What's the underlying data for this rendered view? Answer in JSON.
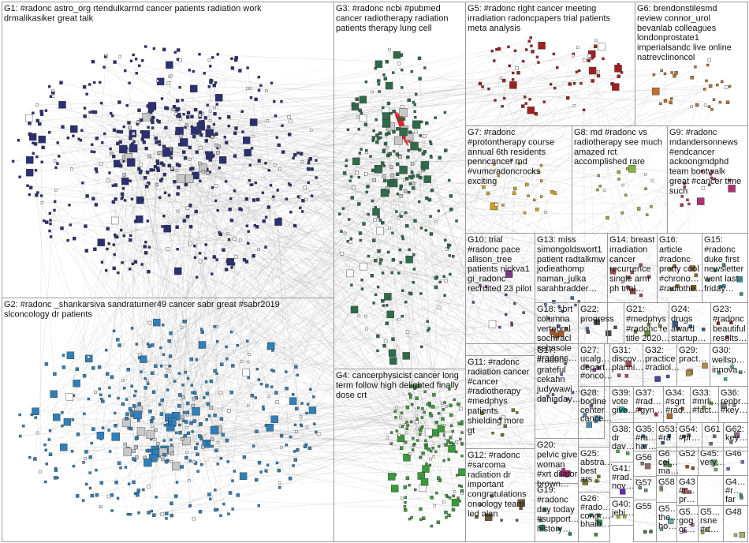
{
  "groups": [
    {
      "id": "G1",
      "lines": [
        "G1: #radonc astro_org rtendulkarmd cancer patients radiation work",
        "drmalikasiker great talk"
      ],
      "color": "#2b2f73"
    },
    {
      "id": "G2",
      "lines": [
        "G2: #radonc _shankarsiva sandraturner49 cancer sabr great #sabr2019",
        "slconcology dr patients"
      ],
      "color": "#2f7fb8"
    },
    {
      "id": "G3",
      "lines": [
        "G3: #radonc ncbi #pubmed",
        "cancer radiotherapy radiation",
        "patients therapy lung cell"
      ],
      "color": "#2e6b4a"
    },
    {
      "id": "G4",
      "lines": [
        "G4: cancerphysicist cancer long",
        "term follow high delighted finally",
        "dose crt"
      ],
      "color": "#3a9a3a"
    },
    {
      "id": "G5",
      "lines": [
        "G5: #radonc right cancer meeting",
        "irradiation radoncpapers trial patients",
        "meta analysis"
      ],
      "color": "#a02020"
    },
    {
      "id": "G6",
      "lines": [
        "G6: brendonstilesmd",
        "review connor_urol",
        "bevanlab colleagues",
        "londonprostate1",
        "imperialsandc live online",
        "natrevclinoncol"
      ],
      "color": "#c0702a"
    },
    {
      "id": "G7",
      "lines": [
        "G7: #radonc",
        "#protontherapy course",
        "annual 6th residents",
        "penncancer md",
        "#vumcradoncrocks",
        "exciting"
      ],
      "color": "#d4a020"
    },
    {
      "id": "G8",
      "lines": [
        "G8: md #radonc vs",
        "radiotherapy see much",
        "amazed rct",
        "accomplished rare"
      ],
      "color": "#8ab040"
    },
    {
      "id": "G9",
      "lines": [
        "G9: #radonc",
        "mdandersonnews",
        "#endcancer",
        "ackoongmdphd",
        "team bootwalk",
        "great #cancer time",
        "such"
      ],
      "color": "#b03070"
    },
    {
      "id": "G10",
      "lines": [
        "G10: trial",
        "#radonc pace",
        "allison_tree",
        "patients nickva1",
        "gi_radonc",
        "recruited 23 pilot"
      ],
      "color": "#7a3a8a"
    },
    {
      "id": "G11",
      "lines": [
        "G11: #radonc",
        "radiation cancer",
        "#cancer",
        "#radiotherapy",
        "#medphys",
        "patients",
        "shielding more",
        "gt"
      ],
      "color": "#5a7a2a"
    },
    {
      "id": "G12",
      "lines": [
        "G12: #radonc",
        "#sarcoma",
        "radiation dr",
        "important",
        "congratulations",
        "oncology team",
        "led alan"
      ],
      "color": "#6a5a3a"
    },
    {
      "id": "G13",
      "lines": [
        "G13: miss",
        "simongoldswort1",
        "patient radtalkmw",
        "jodieathomp",
        "naman_julka",
        "sarahbradder…"
      ],
      "color": "#4a6a9a"
    },
    {
      "id": "G14",
      "lines": [
        "G14: breast",
        "irradiation",
        "cancer",
        "recurrence",
        "single arm",
        "ph trial…"
      ],
      "color": "#9a4a4a"
    },
    {
      "id": "G15",
      "lines": [
        "G15:",
        "#radonc",
        "duke first",
        "newsletter",
        "went last",
        "friday…"
      ],
      "color": "#3a8a8a"
    },
    {
      "id": "G16",
      "lines": [
        "G16:",
        "article",
        "#radonc",
        "pretty cool",
        "#chrono…",
        "#radiothe…"
      ],
      "color": "#8a6a2a"
    },
    {
      "id": "G17",
      "lines": [
        "G17:",
        "#radonc",
        "grateful",
        "cekahn",
        "judywawi…",
        "daniaday…"
      ],
      "color": "#5a5aaa"
    },
    {
      "id": "G18",
      "lines": [
        "G18: sbrt",
        "columna",
        "vertebral",
        "sochiracl",
        "sebasole",
        "#radonc…"
      ],
      "color": "#aa5a2a"
    },
    {
      "id": "G19",
      "lines": [
        "G19:",
        "#radonc",
        "day today",
        "#support…",
        "history…"
      ],
      "color": "#2a7a6a"
    },
    {
      "id": "G20",
      "lines": [
        "G20:",
        "pelvic give",
        "woman",
        "#xrt dilator",
        "brown…"
      ],
      "color": "#aa2a7a"
    },
    {
      "id": "G21",
      "lines": [
        "G21:",
        "#medphys",
        "#radonc re",
        "title 2020…"
      ],
      "color": "#6a8a2a"
    },
    {
      "id": "G22",
      "lines": [
        "G22:",
        "progress"
      ],
      "color": "#4a4a4a"
    },
    {
      "id": "G23",
      "lines": [
        "G23:",
        "#radonc",
        "beautiful",
        "results…"
      ],
      "color": "#8a2a2a"
    },
    {
      "id": "G24",
      "lines": [
        "G24:",
        "drugs",
        "award",
        "startup…"
      ],
      "color": "#2a5a8a"
    },
    {
      "id": "G25",
      "lines": [
        "G25:",
        "abstra…",
        "best",
        "ars…"
      ],
      "color": "#7a7a2a"
    },
    {
      "id": "G26",
      "lines": [
        "G26:",
        "#rado…",
        "congr…",
        "bhaib…"
      ],
      "color": "#2a8a4a"
    },
    {
      "id": "G27",
      "lines": [
        "G27:",
        "ucalg…",
        "depart…",
        "#onco…"
      ],
      "color": "#8a4a8a"
    },
    {
      "id": "G28",
      "lines": [
        "G28:",
        "bodine",
        "center",
        "cance…"
      ],
      "color": "#4a8aaa"
    },
    {
      "id": "G29",
      "lines": [
        "G29:",
        "pract…"
      ],
      "color": "#aa8a4a"
    },
    {
      "id": "G30",
      "lines": [
        "G30:",
        "wellsp…",
        "innova…"
      ],
      "color": "#4aaa8a"
    },
    {
      "id": "G31",
      "lines": [
        "G31:",
        "discov…",
        "planni…"
      ],
      "color": "#aa4a4a"
    },
    {
      "id": "G32",
      "lines": [
        "G32:",
        "practice",
        "#radiol…"
      ],
      "color": "#4a4aaa"
    },
    {
      "id": "G33",
      "lines": [
        "G33:",
        "#mrli…",
        "#fact…"
      ],
      "color": "#6aaa2a"
    },
    {
      "id": "G34",
      "lines": [
        "G34:",
        "#sgrt",
        "#rad…"
      ],
      "color": "#aa6a2a"
    },
    {
      "id": "G35",
      "lines": [
        "G35:",
        "#ra…",
        "har…"
      ],
      "color": "#2a6aaa"
    },
    {
      "id": "G36",
      "lines": [
        "G36:",
        "repbr…",
        "#key…"
      ],
      "color": "#8a8a8a"
    },
    {
      "id": "G37",
      "lines": [
        "G37:",
        "#rad…",
        "#gyn…"
      ],
      "color": "#aa2a4a"
    },
    {
      "id": "G38",
      "lines": [
        "G38:",
        "dr",
        "dav…"
      ],
      "color": "#4aaa4a"
    },
    {
      "id": "G39",
      "lines": [
        "G39:",
        "vote",
        "give…"
      ],
      "color": "#2aaaaa"
    },
    {
      "id": "G40",
      "lines": [
        "G40:",
        "jebi…"
      ],
      "color": "#aaaa2a"
    },
    {
      "id": "G41",
      "lines": [
        "G41:",
        "#rad…",
        "nov…"
      ],
      "color": "#6a2aaa"
    },
    {
      "id": "G43",
      "lines": [
        "G43",
        "#r…",
        "pr…"
      ],
      "color": "#aa6a6a"
    },
    {
      "id": "G45",
      "lines": [
        "G45:",
        "very…"
      ],
      "color": "#6aaa6a"
    },
    {
      "id": "G46",
      "lines": [
        "G46"
      ],
      "color": "#6a6aaa"
    },
    {
      "id": "G48",
      "lines": [
        "G48"
      ],
      "color": "#aaaa6a"
    },
    {
      "id": "G5x",
      "lines": [
        "G5…",
        "the…",
        "ho…"
      ],
      "color": "#6aaaaa"
    },
    {
      "id": "G5y",
      "lines": [
        "G5…",
        "gog",
        "gr…"
      ],
      "color": "#aa6aaa"
    },
    {
      "id": "G5z",
      "lines": [
        "G5…",
        "rsne",
        "#rt…"
      ],
      "color": "#8aaa4a"
    },
    {
      "id": "G4x",
      "lines": [
        "G4…",
        "#r…",
        "far"
      ],
      "color": "#4a8a6a"
    },
    {
      "id": "G52",
      "lines": [
        "G52"
      ],
      "color": "#8a4a2a"
    },
    {
      "id": "G53",
      "lines": [
        "G53:",
        "#ra"
      ],
      "color": "#2a4a8a"
    },
    {
      "id": "G54",
      "lines": [
        "G54:",
        "#pr…"
      ],
      "color": "#6a4a6a"
    },
    {
      "id": "G55",
      "lines": [
        "G55"
      ],
      "color": "#4a6a4a"
    },
    {
      "id": "G56",
      "lines": [
        "G56"
      ],
      "color": "#8a6a6a"
    },
    {
      "id": "G57",
      "lines": [
        "G57"
      ],
      "color": "#6a8a8a"
    },
    {
      "id": "G58",
      "lines": [
        "G58"
      ],
      "color": "#8a8a6a"
    },
    {
      "id": "G61",
      "lines": [
        "G61"
      ],
      "color": "#6a6a8a"
    },
    {
      "id": "G62",
      "lines": [
        "G62:",
        "key…"
      ],
      "color": "#8a6a8a"
    },
    {
      "id": "G6x",
      "lines": [
        "G6",
        "cel…",
        "ma…"
      ],
      "color": "#5a8a5a"
    }
  ]
}
